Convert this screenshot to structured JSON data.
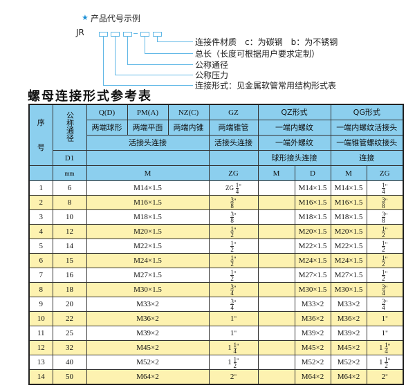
{
  "code_example": {
    "star_icon": "star",
    "heading": "产品代号示例",
    "prefix": "JR",
    "separator": "-",
    "labels": [
      "连接件材质　c：为碳钢　b：为不锈钢",
      "总长（长度可根据用户要求定制）",
      "公称通径",
      "公称压力",
      "连接形式：见金属软管常用结构形式表"
    ]
  },
  "table_title": "螺母连接形式参考表",
  "colors": {
    "header": "#8ccfee",
    "stripe": "#fdf2b0",
    "diagram_line": "#5fb7e6"
  },
  "header": {
    "seq_1": "序",
    "seq_2": "号",
    "dn": "公称通径",
    "d1": "D1",
    "mm": "mm",
    "types": [
      "Q(D)",
      "PM(A)",
      "NZ(C)",
      "GZ",
      "QZ形式",
      "QG形式"
    ],
    "ends": [
      "两端球形",
      "两端平面",
      "两端内锥",
      "两端锥管",
      "一端内螺纹",
      "一端内螺纹活接头"
    ],
    "conn_row1": [
      "活接头连接",
      "活接头连接",
      "一端外螺纹",
      "一端锥管螺纹接头"
    ],
    "conn_row2": [
      "球形接头连接",
      "连接"
    ],
    "units": [
      "M",
      "ZG",
      "M",
      "D",
      "M",
      "ZG"
    ]
  },
  "rows": [
    {
      "no": "1",
      "dn": "6",
      "m": "M14×1.5",
      "zg": {
        "pre": "ZG",
        "num": "1",
        "den": "4"
      },
      "qz_d": "M14×1.5",
      "qg_m": "M14×1.5",
      "qg_zg": {
        "num": "1",
        "den": "4"
      }
    },
    {
      "no": "2",
      "dn": "8",
      "m": "M16×1.5",
      "zg": {
        "num": "3",
        "den": "8"
      },
      "qz_d": "M16×1.5",
      "qg_m": "M16×1.5",
      "qg_zg": {
        "num": "3",
        "den": "8"
      }
    },
    {
      "no": "3",
      "dn": "10",
      "m": "M18×1.5",
      "zg": {
        "num": "3",
        "den": "8"
      },
      "qz_d": "M18×1.5",
      "qg_m": "M18×1.5",
      "qg_zg": {
        "num": "3",
        "den": "8"
      }
    },
    {
      "no": "4",
      "dn": "12",
      "m": "M20×1.5",
      "zg": {
        "num": "1",
        "den": "2"
      },
      "qz_d": "M20×1.5",
      "qg_m": "M20×1.5",
      "qg_zg": {
        "num": "1",
        "den": "2"
      }
    },
    {
      "no": "5",
      "dn": "14",
      "m": "M22×1.5",
      "zg": {
        "num": "1",
        "den": "2"
      },
      "qz_d": "M22×1.5",
      "qg_m": "M22×1.5",
      "qg_zg": {
        "num": "1",
        "den": "2"
      }
    },
    {
      "no": "6",
      "dn": "15",
      "m": "M24×1.5",
      "zg": {
        "num": "1",
        "den": "2"
      },
      "qz_d": "M24×1.5",
      "qg_m": "M24×1.5",
      "qg_zg": {
        "num": "1",
        "den": "2"
      }
    },
    {
      "no": "7",
      "dn": "16",
      "m": "M27×1.5",
      "zg": {
        "num": "1",
        "den": "2"
      },
      "qz_d": "M27×1.5",
      "qg_m": "M27×1.5",
      "qg_zg": {
        "num": "1",
        "den": "2"
      }
    },
    {
      "no": "8",
      "dn": "18",
      "m": "M30×1.5",
      "zg": {
        "num": "3",
        "den": "4"
      },
      "qz_d": "M30×1.5",
      "qg_m": "M30×1.5",
      "qg_zg": {
        "num": "3",
        "den": "4"
      }
    },
    {
      "no": "9",
      "dn": "20",
      "m": "M33×2",
      "zg": {
        "num": "3",
        "den": "4"
      },
      "qz_d": "M33×2",
      "qg_m": "M33×2",
      "qg_zg": {
        "num": "3",
        "den": "4"
      }
    },
    {
      "no": "10",
      "dn": "22",
      "m": "M36×2",
      "zg": {
        "whole": "1"
      },
      "qz_d": "M36×2",
      "qg_m": "M36×2",
      "qg_zg": {
        "whole": "1"
      }
    },
    {
      "no": "11",
      "dn": "25",
      "m": "M39×2",
      "zg": {
        "whole": "1"
      },
      "qz_d": "M39×2",
      "qg_m": "M39×2",
      "qg_zg": {
        "whole": "1"
      }
    },
    {
      "no": "12",
      "dn": "32",
      "m": "M45×2",
      "zg": {
        "whole": "1",
        "num": "1",
        "den": "4"
      },
      "qz_d": "M45×2",
      "qg_m": "M45×2",
      "qg_zg": {
        "whole": "1",
        "num": "1",
        "den": "4"
      }
    },
    {
      "no": "13",
      "dn": "40",
      "m": "M52×2",
      "zg": {
        "whole": "1",
        "num": "1",
        "den": "2"
      },
      "qz_d": "M52×2",
      "qg_m": "M52×2",
      "qg_zg": {
        "whole": "1",
        "num": "1",
        "den": "2"
      }
    },
    {
      "no": "14",
      "dn": "50",
      "m": "M64×2",
      "zg": {
        "whole": "2"
      },
      "qz_d": "M64×2",
      "qg_m": "M64×2",
      "qg_zg": {
        "whole": "2"
      }
    }
  ]
}
